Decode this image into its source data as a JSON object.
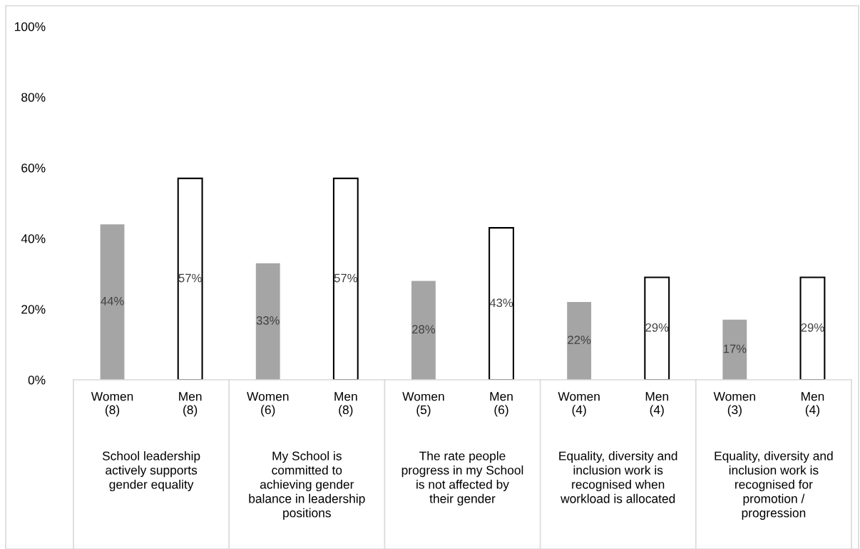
{
  "chart_data": {
    "type": "bar",
    "categories": [
      "Women\n(8)",
      "Men\n(8)",
      "Women\n(6)",
      "Men\n(8)",
      "Women\n(5)",
      "Men\n(6)",
      "Women\n(4)",
      "Men\n(4)",
      "Women\n(3)",
      "Men\n(4)"
    ],
    "values": [
      44,
      57,
      33,
      57,
      28,
      43,
      22,
      29,
      17,
      29
    ],
    "colors": [
      "#a5a5a5",
      "#ffffff",
      "#a5a5a5",
      "#ffffff",
      "#a5a5a5",
      "#ffffff",
      "#a5a5a5",
      "#ffffff",
      "#a5a5a5",
      "#ffffff"
    ],
    "value_labels": [
      "44%",
      "57%",
      "33%",
      "57%",
      "28%",
      "43%",
      "22%",
      "29%",
      "17%",
      "29%"
    ],
    "annotations": [
      "School leadership\nactively supports\ngender equality",
      "My School is\ncommitted to\nachieving gender\nbalance in leadership\npositions",
      "The rate people\nprogress in my School\nis not affected by\ntheir gender",
      "Equality, diversity and\ninclusion work is\nrecognised when\nworkload is allocated",
      "Equality, diversity and\ninclusion work is\nrecognised for\npromotion /\nprogression"
    ],
    "ylim": [
      0,
      100
    ],
    "yticks": [
      {
        "value": 0,
        "label": "0%"
      },
      {
        "value": 20,
        "label": "20%"
      },
      {
        "value": 40,
        "label": "40%"
      },
      {
        "value": 60,
        "label": "60%"
      },
      {
        "value": 80,
        "label": "80%"
      },
      {
        "value": 100,
        "label": "100%"
      }
    ],
    "grid": false
  }
}
